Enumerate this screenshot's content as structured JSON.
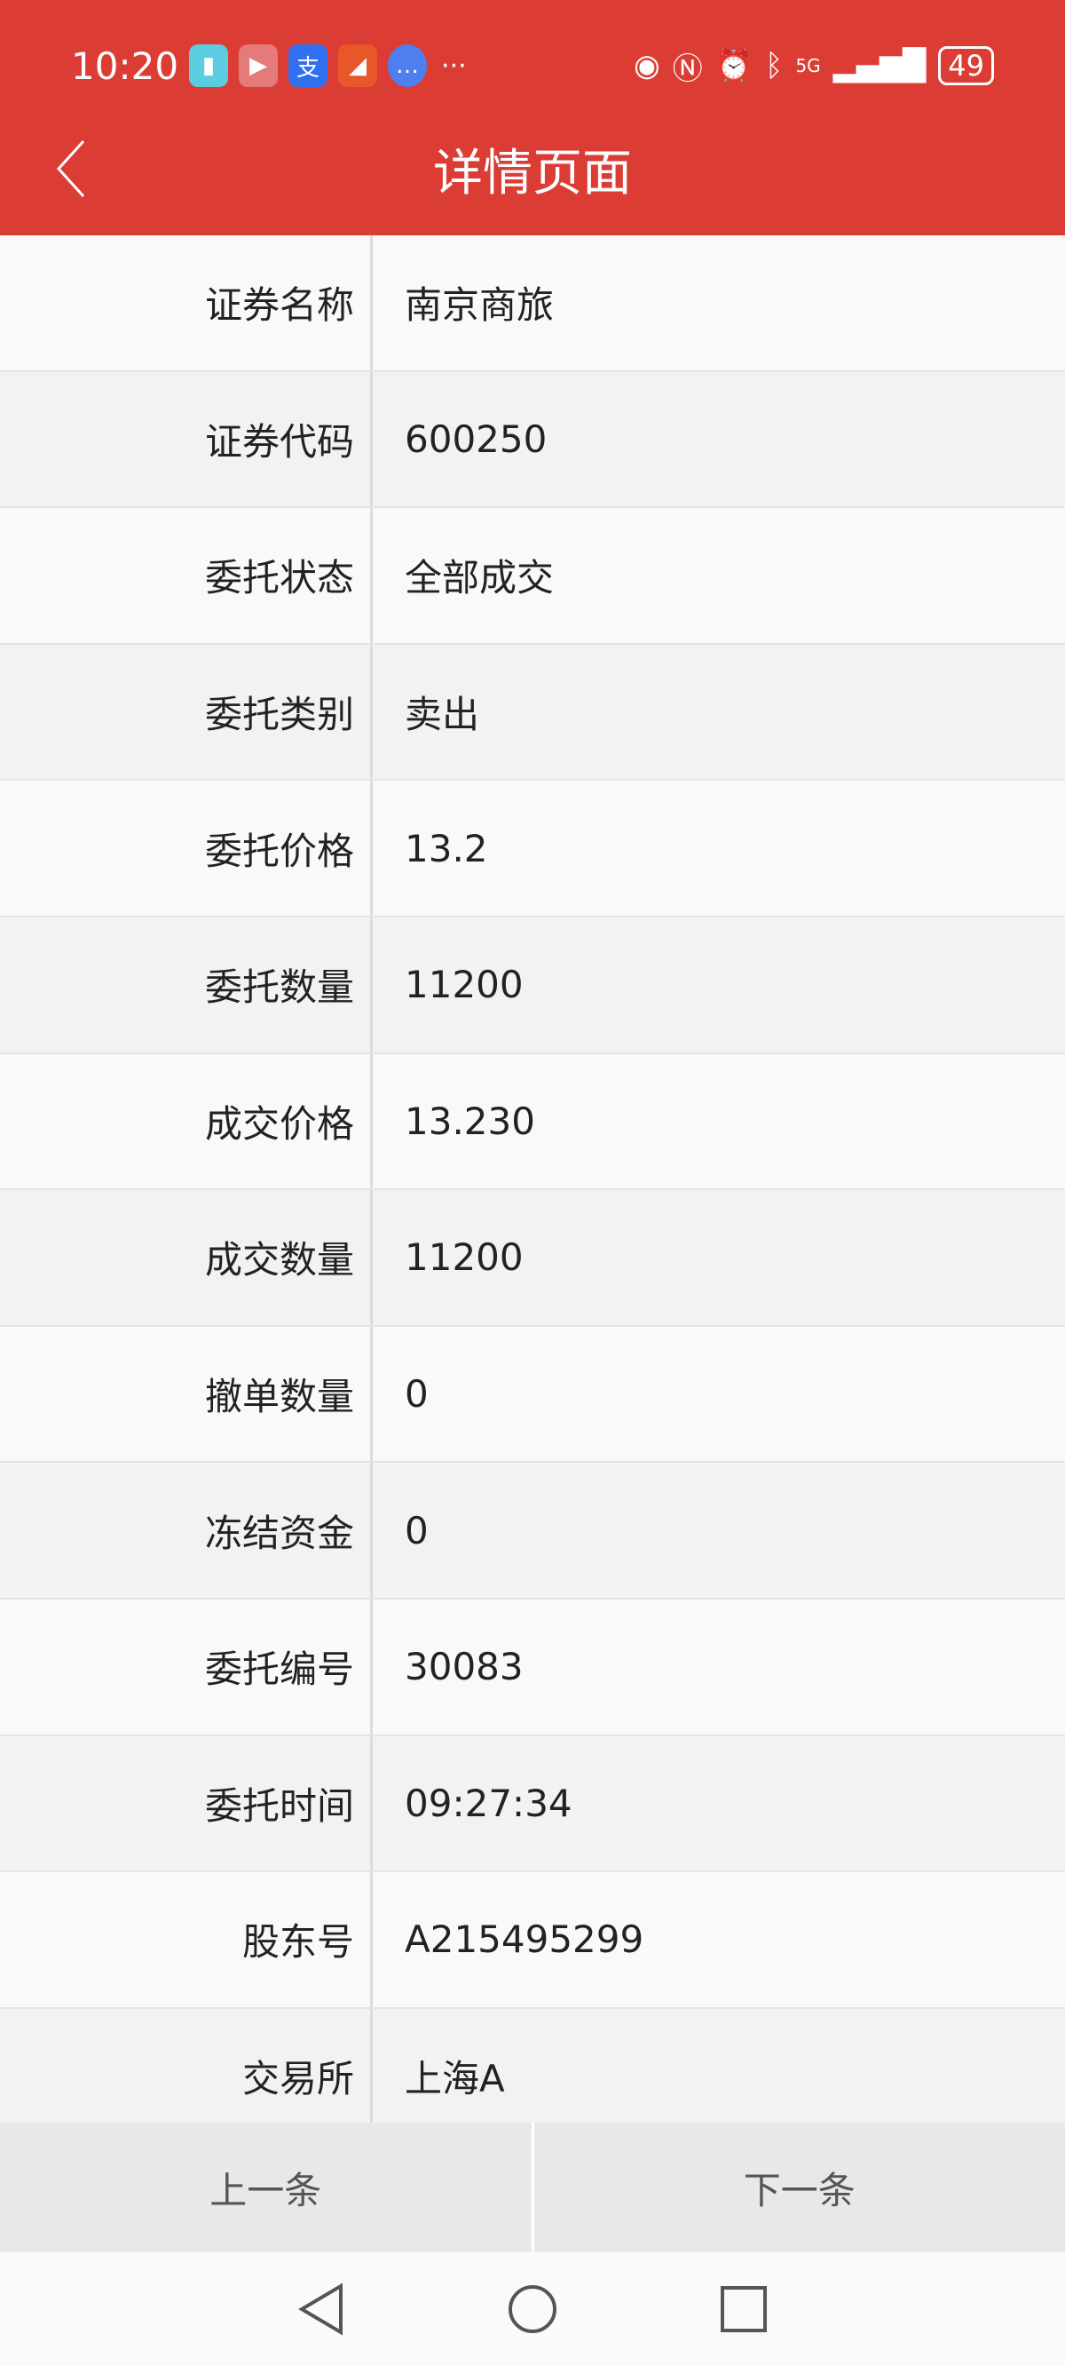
{
  "status_bar": {
    "time": "10:20",
    "battery": "49",
    "network": "5G",
    "apps": [
      "book-app",
      "video-app",
      "alipay-app",
      "trading-app",
      "message-app"
    ]
  },
  "header": {
    "title": "详情页面"
  },
  "colors": {
    "header": "#db3d35"
  },
  "rows": [
    {
      "label": "证券名称",
      "value": "南京商旅"
    },
    {
      "label": "证券代码",
      "value": "600250"
    },
    {
      "label": "委托状态",
      "value": "全部成交"
    },
    {
      "label": "委托类别",
      "value": "卖出"
    },
    {
      "label": "委托价格",
      "value": "13.2"
    },
    {
      "label": "委托数量",
      "value": "11200"
    },
    {
      "label": "成交价格",
      "value": "13.230"
    },
    {
      "label": "成交数量",
      "value": "11200"
    },
    {
      "label": "撤单数量",
      "value": "0"
    },
    {
      "label": "冻结资金",
      "value": "0"
    },
    {
      "label": "委托编号",
      "value": "30083"
    },
    {
      "label": "委托时间",
      "value": "09:27:34"
    },
    {
      "label": "股东号",
      "value": "A215495299"
    },
    {
      "label": "交易所",
      "value": "上海A"
    }
  ],
  "footer": {
    "prev": "上一条",
    "next": "下一条"
  }
}
